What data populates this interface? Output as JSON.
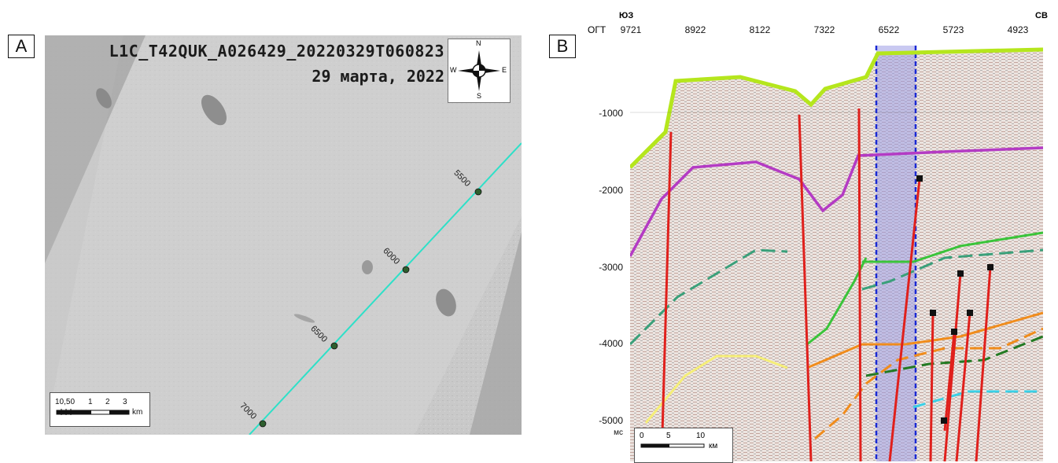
{
  "panel_a": {
    "label": "A",
    "title": "L1C_T42QUK_A026429_20220329T060823",
    "date": "29 марта, 2022",
    "compass": {
      "n": "N",
      "s": "S",
      "e": "E",
      "w": "W"
    },
    "scalebar": {
      "ticks": [
        "10,50",
        "1",
        "2",
        "3"
      ],
      "unit": "km"
    },
    "track_labels": [
      "5500",
      "6000",
      "6500",
      "7000"
    ]
  },
  "panel_b": {
    "label": "B",
    "left_dir": "ЮЗ",
    "right_dir": "СВ",
    "axis_prefix": "ОГТ",
    "cdp_ticks": [
      "9721",
      "8922",
      "8122",
      "7322",
      "6522",
      "5723",
      "4923"
    ],
    "depth_ticks": [
      "-1000",
      "-2000",
      "-3000",
      "-4000",
      "-5000"
    ],
    "depth_unit": "мс",
    "scalebar": {
      "ticks": [
        "0",
        "5",
        "10"
      ],
      "unit": "км"
    }
  },
  "colors": {
    "track": "#2ee0c8",
    "seafloor": "#b5e61d",
    "magenta_horizon": "#b43bc4",
    "fault": "#e0201c",
    "highlight": "#9c9ce6"
  }
}
